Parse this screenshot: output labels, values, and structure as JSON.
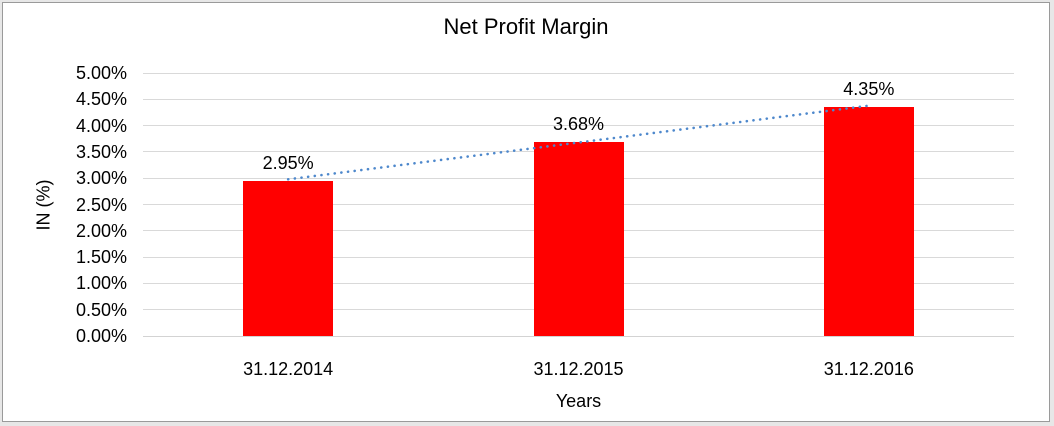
{
  "window": {
    "background_color": "#e7e7e7",
    "frame_border_color": "#9a9a9a",
    "chart_background": "#ffffff"
  },
  "chart_data": {
    "type": "bar",
    "title": "Net Profit Margin",
    "xlabel": "Years",
    "ylabel": "IN (%)",
    "categories": [
      "31.12.2014",
      "31.12.2015",
      "31.12.2016"
    ],
    "values": [
      2.95,
      3.68,
      4.35
    ],
    "data_labels": [
      "2.95%",
      "3.68%",
      "4.35%"
    ],
    "ylim": [
      0,
      5
    ],
    "ytick_step": 0.5,
    "ytick_labels": [
      "0.00%",
      "0.50%",
      "1.00%",
      "1.50%",
      "2.00%",
      "2.50%",
      "3.00%",
      "3.50%",
      "4.00%",
      "4.50%",
      "5.00%"
    ],
    "grid": true,
    "legend": "none",
    "bar_color": "#ff0000",
    "gridline_color": "#d9d9d9",
    "axis_line_color": "#d3d3d3",
    "text_color": "#000000",
    "trendline": {
      "type": "linear",
      "style": "dotted",
      "color": "#4e88cc",
      "start_value": 2.95,
      "end_value": 4.35
    }
  }
}
